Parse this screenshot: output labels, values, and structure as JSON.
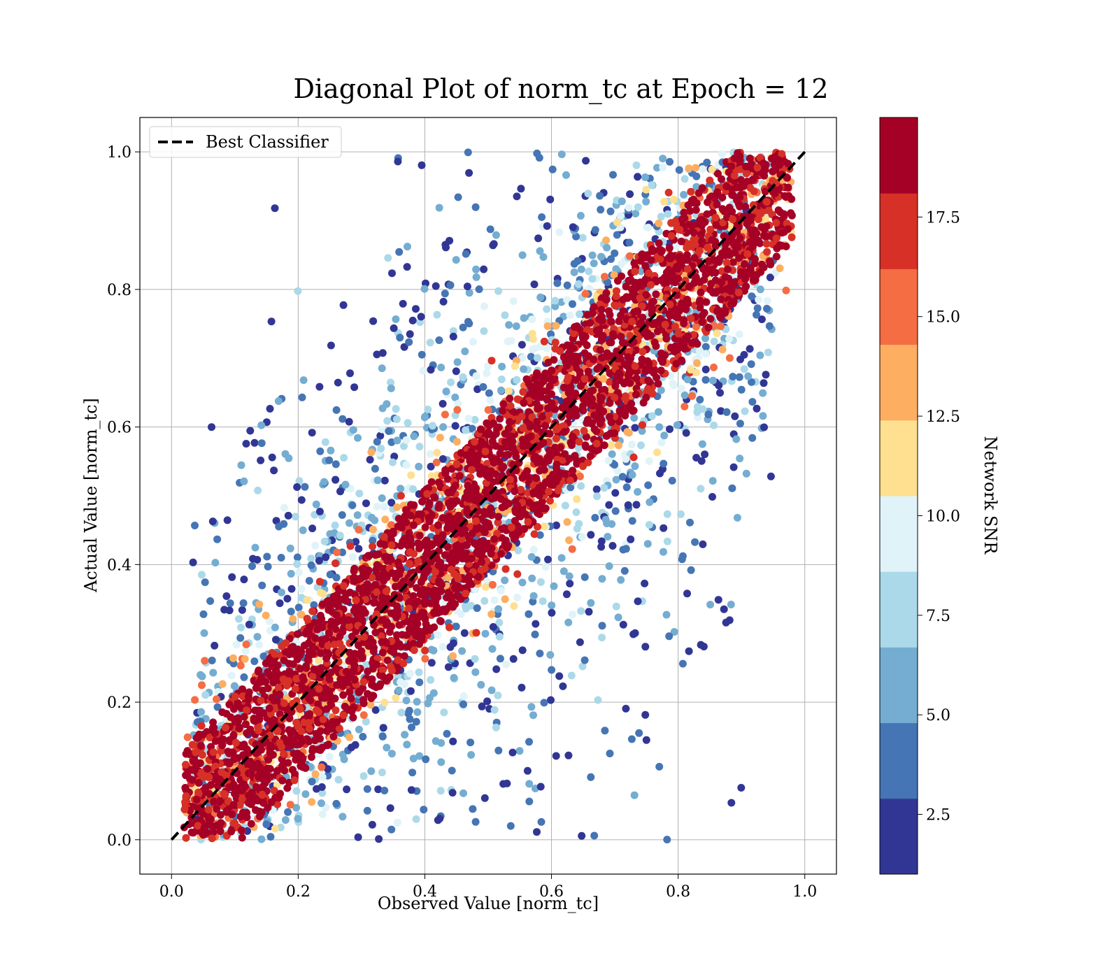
{
  "chart_data": {
    "type": "scatter",
    "title": "Diagonal Plot of norm_tc at Epoch = 12",
    "xlabel": "Observed Value [norm_tc]",
    "ylabel": "Actual Value [norm_tc]",
    "xlim": [
      -0.05,
      1.05
    ],
    "ylim": [
      -0.05,
      1.05
    ],
    "xticks": [
      "0.0",
      "0.2",
      "0.4",
      "0.6",
      "0.8",
      "1.0"
    ],
    "yticks": [
      "0.0",
      "0.2",
      "0.4",
      "0.6",
      "0.8",
      "1.0"
    ],
    "grid": true,
    "legend": {
      "placement": "upper-left",
      "entries": [
        "Best Classifier"
      ]
    },
    "reference_line": {
      "name": "Best Classifier",
      "x": [
        0,
        1
      ],
      "y": [
        0,
        1
      ],
      "style": "dashed",
      "color": "#000000"
    },
    "colorbar": {
      "label": "Network SNR",
      "range": [
        1,
        20
      ],
      "ticks": [
        "2.5",
        "5.0",
        "7.5",
        "10.0",
        "12.5",
        "15.0",
        "17.5"
      ],
      "colors": [
        "#313695",
        "#4575b4",
        "#74add1",
        "#abd9e9",
        "#e0f3f8",
        "#fee090",
        "#fdae61",
        "#f46d43",
        "#d73027",
        "#a50026"
      ]
    },
    "series_description": {
      "high_snr_band": {
        "snr": ">17.5",
        "y_minus_x_range": [
          -0.12,
          0.12
        ]
      },
      "low_snr_spread": {
        "snr": "1-10",
        "y_minus_x_range": [
          -0.9,
          0.9
        ]
      }
    }
  }
}
